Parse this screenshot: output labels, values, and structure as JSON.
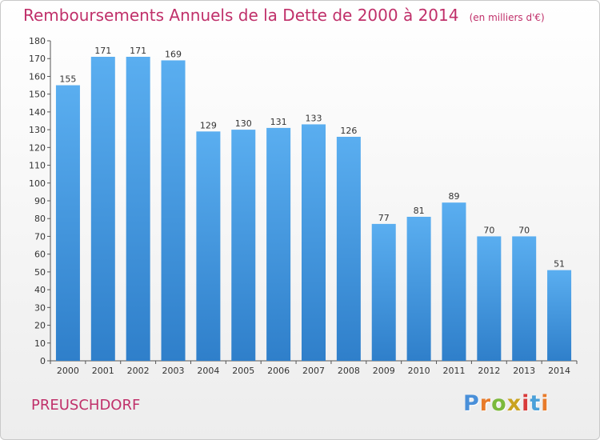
{
  "chart_data": {
    "type": "bar",
    "title": "Remboursements Annuels de la Dette de 2000 à 2014",
    "unit_label": "(en milliers d'€)",
    "categories": [
      "2000",
      "2001",
      "2002",
      "2003",
      "2004",
      "2005",
      "2006",
      "2007",
      "2008",
      "2009",
      "2010",
      "2011",
      "2012",
      "2013",
      "2014"
    ],
    "values": [
      155,
      171,
      171,
      169,
      129,
      130,
      131,
      133,
      126,
      77,
      81,
      89,
      70,
      70,
      51
    ],
    "ylim": [
      0,
      180
    ],
    "ytick_step": 10,
    "xlabel": "",
    "ylabel": "",
    "grid": false,
    "bar_color": "#3d8fd9"
  },
  "commune": "PREUSCHDORF",
  "brand": {
    "letters": [
      "P",
      "r",
      "o",
      "x",
      "i",
      "t",
      "i"
    ],
    "colors": [
      "#4a90d9",
      "#e87b2a",
      "#7bb93c",
      "#c9a320",
      "#d83a3a",
      "#4aa0d9",
      "#e87b2a"
    ]
  }
}
